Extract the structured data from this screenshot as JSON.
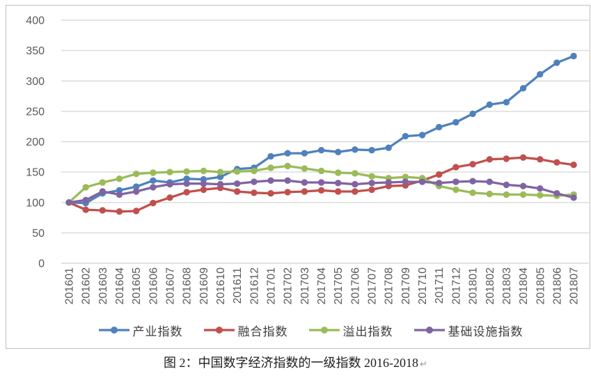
{
  "chart_data": {
    "type": "line",
    "x": [
      "201601",
      "201602",
      "201603",
      "201604",
      "201605",
      "201606",
      "201607",
      "201608",
      "201609",
      "201610",
      "201611",
      "201612",
      "201701",
      "201702",
      "201703",
      "201704",
      "201705",
      "201706",
      "201707",
      "201708",
      "201709",
      "201710",
      "201711",
      "201712",
      "201801",
      "201802",
      "201803",
      "201804",
      "201805",
      "201806",
      "201807"
    ],
    "series": [
      {
        "name": "产业指数",
        "color": "#4f81bd",
        "values": [
          100,
          99,
          115,
          120,
          126,
          136,
          133,
          139,
          138,
          142,
          155,
          157,
          176,
          181,
          181,
          186,
          183,
          187,
          186,
          190,
          209,
          211,
          224,
          232,
          246,
          261,
          265,
          288,
          311,
          330,
          341
        ]
      },
      {
        "name": "融合指数",
        "color": "#c0504d",
        "values": [
          100,
          88,
          87,
          85,
          86,
          99,
          108,
          117,
          121,
          124,
          118,
          116,
          115,
          117,
          118,
          120,
          118,
          118,
          121,
          127,
          128,
          136,
          146,
          158,
          163,
          171,
          172,
          174,
          171,
          166,
          162
        ]
      },
      {
        "name": "溢出指数",
        "color": "#9bbb59",
        "values": [
          100,
          125,
          133,
          139,
          147,
          149,
          150,
          151,
          152,
          150,
          151,
          152,
          157,
          160,
          156,
          152,
          149,
          148,
          143,
          140,
          142,
          140,
          127,
          121,
          116,
          114,
          113,
          113,
          112,
          111,
          113
        ]
      },
      {
        "name": "基础设施指数",
        "color": "#8064a2",
        "values": [
          100,
          104,
          118,
          113,
          118,
          125,
          130,
          131,
          131,
          130,
          131,
          134,
          136,
          136,
          133,
          133,
          132,
          130,
          132,
          133,
          134,
          134,
          132,
          134,
          135,
          134,
          129,
          127,
          123,
          115,
          108
        ]
      }
    ],
    "yticks": [
      0,
      50,
      100,
      150,
      200,
      250,
      300,
      350,
      400
    ],
    "ylim": [
      0,
      400
    ],
    "ytick_step": 50,
    "grid": true,
    "legend_position": "bottom",
    "axis_label_color": "#595959",
    "gridline_color": "#d9d9d9"
  },
  "caption": {
    "text": "图 2：中国数字经济指数的一级指数 2016-2018",
    "return_mark": "↵"
  }
}
